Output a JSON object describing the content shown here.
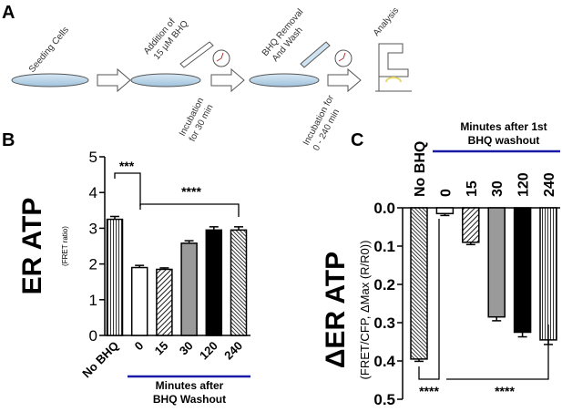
{
  "panel_a": {
    "label": "A",
    "steps": [
      {
        "lines": [
          "Seeding Cells"
        ]
      },
      {
        "lines": [
          "Addition of",
          "15 µM BHQ"
        ]
      },
      {
        "lines": [
          "Incubation",
          "for 30 min"
        ]
      },
      {
        "lines": [
          "BHQ Removal",
          "And Wash"
        ]
      },
      {
        "lines": [
          "Incubation for",
          "0 - 240 min"
        ]
      },
      {
        "lines": [
          "Analysis"
        ]
      }
    ]
  },
  "chart_data": [
    {
      "type": "bar",
      "panel_label": "B",
      "ylabel": "ER ATP",
      "ylabel_sub": "(FRET ratio)",
      "xlabel": [
        "Minutes after",
        "BHQ Washout"
      ],
      "categories": [
        "No BHQ",
        "0",
        "15",
        "30",
        "120",
        "240"
      ],
      "values": [
        3.25,
        1.9,
        1.85,
        2.58,
        2.95,
        2.95
      ],
      "errors": [
        0.08,
        0.06,
        0.04,
        0.07,
        0.09,
        0.09
      ],
      "colors": [
        "#ffffff",
        "#ffffff",
        "#ffffff",
        "#9a9a9a",
        "#000000",
        "#ffffff"
      ],
      "patterns": [
        "vertical",
        "none",
        "diagonal",
        "none",
        "none",
        "diagonal-dense"
      ],
      "ylim": [
        0,
        5
      ],
      "yticks": [
        0,
        1,
        2,
        3,
        4,
        5
      ],
      "inverted": false,
      "annotations": [
        "***",
        "****"
      ]
    },
    {
      "type": "bar",
      "panel_label": "C",
      "ylabel": "ΔER ATP",
      "ylabel_sub": "(FRET/CFP, ΔMax (R/R0))",
      "xlabel": [
        "Minutes after 1st",
        "BHQ washout"
      ],
      "categories": [
        "No BHQ",
        "0",
        "15",
        "30",
        "120",
        "240"
      ],
      "values": [
        0.395,
        0.015,
        0.09,
        0.285,
        0.325,
        0.345
      ],
      "errors": [
        0.006,
        0.005,
        0.006,
        0.01,
        0.012,
        0.012
      ],
      "colors": [
        "#ffffff",
        "#ffffff",
        "#ffffff",
        "#9a9a9a",
        "#000000",
        "#ffffff"
      ],
      "patterns": [
        "diagonal-dense",
        "none",
        "diagonal",
        "none",
        "none",
        "vertical"
      ],
      "ylim": [
        0,
        0.5
      ],
      "yticks": [
        {
          "value": 0,
          "label": "0.0"
        },
        0.1,
        0.2,
        0.3,
        0.4,
        0.5
      ],
      "inverted": true,
      "annotations": [
        "****",
        "****"
      ]
    }
  ]
}
